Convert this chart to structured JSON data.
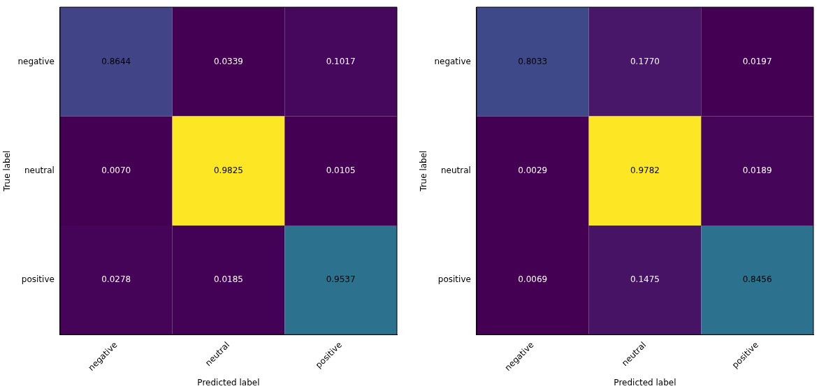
{
  "chart_data": [
    {
      "type": "heatmap",
      "xlabel": "Predicted label",
      "ylabel": "True label",
      "categories": [
        "negative",
        "neutral",
        "positive"
      ],
      "y_categories": [
        "negative",
        "neutral",
        "positive"
      ],
      "cells": [
        [
          0.8644,
          0.0339,
          0.1017
        ],
        [
          0.007,
          0.9825,
          0.0105
        ],
        [
          0.0278,
          0.0185,
          0.9537
        ]
      ],
      "cell_labels": [
        [
          "0.8644",
          "0.0339",
          "0.1017"
        ],
        [
          "0.0070",
          "0.9825",
          "0.0105"
        ],
        [
          "0.0278",
          "0.0185",
          "0.9537"
        ]
      ],
      "colors": [
        [
          "#414487",
          "#440154",
          "#46085c"
        ],
        [
          "#440154",
          "#fde725",
          "#440154"
        ],
        [
          "#450457",
          "#440256",
          "#2c728e"
        ]
      ],
      "data_labels": true
    },
    {
      "type": "heatmap",
      "xlabel": "Predicted label",
      "ylabel": "True label",
      "categories": [
        "negative",
        "neutral",
        "positive"
      ],
      "y_categories": [
        "negative",
        "neutral",
        "positive"
      ],
      "cells": [
        [
          0.8033,
          0.177,
          0.0197
        ],
        [
          0.0029,
          0.9782,
          0.0189
        ],
        [
          0.0069,
          0.1475,
          0.8456
        ]
      ],
      "cell_labels": [
        [
          "0.8033",
          "0.1770",
          "0.0197"
        ],
        [
          "0.0029",
          "0.9782",
          "0.0189"
        ],
        [
          "0.0069",
          "0.1475",
          "0.8456"
        ]
      ],
      "colors": [
        [
          "#3e4989",
          "#481769",
          "#440154"
        ],
        [
          "#440154",
          "#fde725",
          "#450559"
        ],
        [
          "#440154",
          "#471365",
          "#2c728e"
        ]
      ],
      "data_labels": true
    }
  ]
}
